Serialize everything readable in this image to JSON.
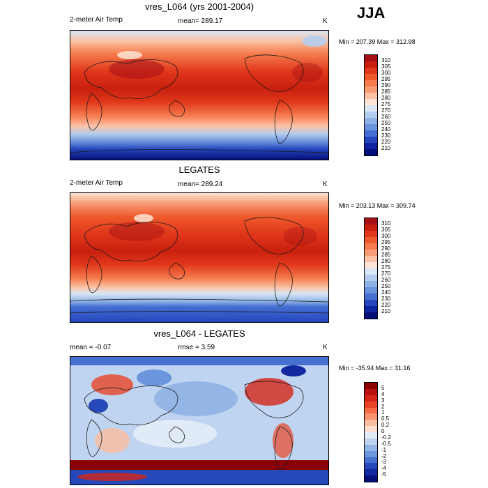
{
  "season": "JJA",
  "panels": [
    {
      "title": "vres_L064 (yrs 2001-2004)",
      "left_label": "2-meter Air Temp",
      "center_label": "mean= 289.17",
      "right_label": "K",
      "minmax": "Min = 207.39 Max = 312.98",
      "colorbar_labels": [
        "310",
        "305",
        "300",
        "295",
        "290",
        "285",
        "280",
        "275",
        "270",
        "260",
        "250",
        "240",
        "230",
        "220",
        "210"
      ],
      "colorbar_colors": [
        "#a50f15",
        "#c8200f",
        "#e0361a",
        "#ef5a2c",
        "#f57b4d",
        "#f89c76",
        "#fbc2a6",
        "#fde4d4",
        "#d8e6f6",
        "#b4cdee",
        "#8eb2e5",
        "#6a93dc",
        "#456fd2",
        "#2445bd",
        "#0f23a0",
        "#050f7a"
      ]
    },
    {
      "title": "LEGATES",
      "left_label": "2-meter Air Temp",
      "center_label": "mean= 289.24",
      "right_label": "K",
      "minmax": "Min = 203.13 Max = 309.74",
      "colorbar_labels": [
        "310",
        "305",
        "300",
        "295",
        "290",
        "285",
        "280",
        "275",
        "270",
        "260",
        "250",
        "240",
        "230",
        "220",
        "210"
      ],
      "colorbar_colors": [
        "#a50f15",
        "#c8200f",
        "#e0361a",
        "#ef5a2c",
        "#f57b4d",
        "#f89c76",
        "#fbc2a6",
        "#fde4d4",
        "#d8e6f6",
        "#b4cdee",
        "#8eb2e5",
        "#6a93dc",
        "#456fd2",
        "#2445bd",
        "#0f23a0",
        "#050f7a"
      ]
    },
    {
      "title": "vres_L064 - LEGATES",
      "left_label": "mean =  -0.07",
      "center_label": "rmse =   3.59",
      "right_label": "K",
      "minmax": "Min = -35.94 Max =  31.16",
      "colorbar_labels": [
        "5",
        "4",
        "3",
        "2",
        "1",
        "0.5",
        "0.2",
        "0",
        "-0.2",
        "-0.5",
        "-1",
        "-2",
        "-3",
        "-4",
        "-5"
      ],
      "colorbar_colors": [
        "#8b0000",
        "#b81010",
        "#d62518",
        "#ea4427",
        "#f66a44",
        "#f9936f",
        "#fbbd9f",
        "#fde0d2",
        "#e1ebf7",
        "#bfd4f0",
        "#93b6e6",
        "#6b95dc",
        "#4570cf",
        "#2648b8",
        "#1228a0",
        "#060f78"
      ]
    }
  ]
}
